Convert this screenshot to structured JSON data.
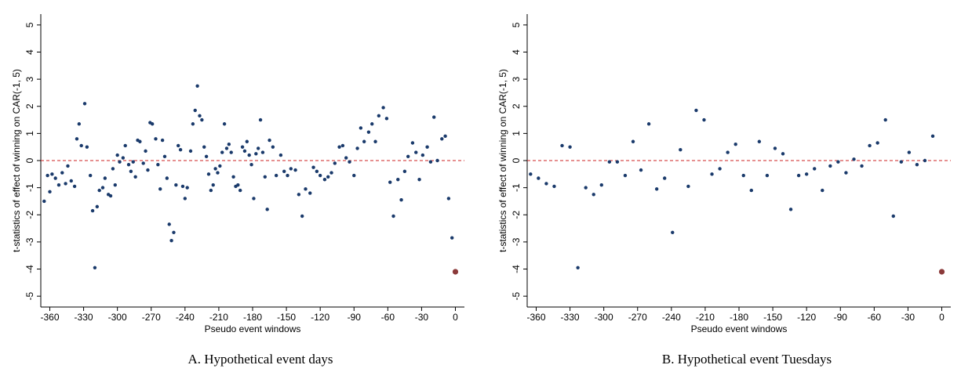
{
  "chart_data": [
    {
      "type": "scatter",
      "caption": "A. Hypothetical event days",
      "xlabel": "Pseudo event windows",
      "ylabel": "t-statistics of effect of winning on CAR(-1, 5)",
      "xlim": [
        -368,
        8
      ],
      "ylim": [
        -5.4,
        5.4
      ],
      "xticks": [
        -360,
        -330,
        -300,
        -270,
        -240,
        -210,
        -180,
        -150,
        -120,
        -90,
        -60,
        -30,
        0
      ],
      "yticks": [
        -5,
        -4,
        -3,
        -2,
        -1,
        0,
        1,
        2,
        3,
        4,
        5
      ],
      "reference_line": {
        "value": 0,
        "color": "#cc2222"
      },
      "series": [
        {
          "color": "#1a3a6b",
          "x": [
            -365,
            -362,
            -360,
            -358,
            -355,
            -352,
            -349,
            -346,
            -344,
            -341,
            -338,
            -336,
            -334,
            -332,
            -329,
            -327,
            -324,
            -322,
            -320,
            -318,
            -316,
            -313,
            -311,
            -308,
            -306,
            -304,
            -302,
            -300,
            -298,
            -295,
            -293,
            -290,
            -288,
            -286,
            -284,
            -282,
            -280,
            -277,
            -275,
            -273,
            -271,
            -269,
            -266,
            -264,
            -262,
            -260,
            -258,
            -256,
            -254,
            -252,
            -250,
            -248,
            -246,
            -244,
            -242,
            -240,
            -238,
            -235,
            -233,
            -231,
            -229,
            -227,
            -225,
            -223,
            -221,
            -219,
            -217,
            -215,
            -213,
            -211,
            -209,
            -207,
            -205,
            -203,
            -201,
            -199,
            -197,
            -195,
            -193,
            -191,
            -189,
            -187,
            -185,
            -183,
            -181,
            -179,
            -177,
            -175,
            -173,
            -171,
            -169,
            -167,
            -165,
            -162,
            -159,
            -155,
            -152,
            -149,
            -146,
            -142,
            -139,
            -136,
            -133,
            -129,
            -126,
            -123,
            -120,
            -116,
            -113,
            -110,
            -107,
            -103,
            -100,
            -97,
            -94,
            -90,
            -87,
            -84,
            -81,
            -77,
            -74,
            -71,
            -68,
            -64,
            -61,
            -58,
            -55,
            -51,
            -48,
            -45,
            -42,
            -38,
            -35,
            -32,
            -29,
            -25,
            -22,
            -19,
            -16,
            -12,
            -9,
            -6,
            -3
          ],
          "values": [
            -1.5,
            -0.55,
            -1.15,
            -0.5,
            -0.65,
            -0.9,
            -0.45,
            -0.85,
            -0.2,
            -0.75,
            -0.95,
            0.8,
            1.35,
            0.55,
            2.1,
            0.5,
            -0.55,
            -1.85,
            -3.95,
            -1.7,
            -1.1,
            -1.0,
            -0.65,
            -1.25,
            -1.3,
            -0.3,
            -0.9,
            0.2,
            -0.05,
            0.1,
            0.55,
            -0.15,
            -0.4,
            -0.05,
            -0.6,
            0.75,
            0.7,
            -0.1,
            0.35,
            -0.35,
            1.4,
            1.35,
            0.8,
            -0.15,
            -1.05,
            0.75,
            0.15,
            -0.65,
            -2.35,
            -2.95,
            -2.65,
            -0.9,
            0.55,
            0.4,
            -0.95,
            -1.4,
            -1.0,
            0.35,
            1.35,
            1.85,
            2.75,
            1.65,
            1.5,
            0.5,
            0.15,
            -0.5,
            -1.1,
            -0.9,
            -0.3,
            -0.45,
            -0.2,
            0.3,
            1.35,
            0.45,
            0.6,
            0.3,
            -0.6,
            -0.95,
            -0.9,
            -1.1,
            0.5,
            0.35,
            0.7,
            0.2,
            -0.15,
            -1.4,
            0.25,
            0.45,
            1.5,
            0.3,
            -0.6,
            -1.8,
            0.75,
            0.5,
            -0.55,
            0.2,
            -0.4,
            -0.55,
            -0.3,
            -0.35,
            -1.25,
            -2.05,
            -1.05,
            -1.2,
            -0.25,
            -0.4,
            -0.55,
            -0.7,
            -0.6,
            -0.45,
            -0.1,
            0.5,
            0.55,
            0.1,
            -0.05,
            -0.55,
            0.45,
            1.2,
            0.7,
            1.05,
            1.35,
            0.7,
            1.65,
            1.95,
            1.55,
            -0.8,
            -2.05,
            -0.7,
            -1.45,
            -0.4,
            0.15,
            0.65,
            0.3,
            -0.7,
            0.2,
            0.5,
            -0.05,
            1.6,
            0.0,
            0.8,
            0.9,
            -1.4,
            -2.85
          ]
        },
        {
          "color": "#8b3a3a",
          "x": [
            0
          ],
          "values": [
            -4.1
          ]
        }
      ]
    },
    {
      "type": "scatter",
      "caption": "B. Hypothetical event Tuesdays",
      "xlabel": "Pseudo event windows",
      "ylabel": "t-statistics of effect of winning on CAR(-1, 5)",
      "xlim": [
        -368,
        8
      ],
      "ylim": [
        -5.4,
        5.4
      ],
      "xticks": [
        -360,
        -330,
        -300,
        -270,
        -240,
        -210,
        -180,
        -150,
        -120,
        -90,
        -60,
        -30,
        0
      ],
      "yticks": [
        -5,
        -4,
        -3,
        -2,
        -1,
        0,
        1,
        2,
        3,
        4,
        5
      ],
      "reference_line": {
        "value": 0,
        "color": "#cc2222"
      },
      "series": [
        {
          "color": "#1a3a6b",
          "x": [
            -365,
            -358,
            -351,
            -344,
            -337,
            -330,
            -323,
            -316,
            -309,
            -302,
            -295,
            -288,
            -281,
            -274,
            -267,
            -260,
            -253,
            -246,
            -239,
            -232,
            -225,
            -218,
            -211,
            -204,
            -197,
            -190,
            -183,
            -176,
            -169,
            -162,
            -155,
            -148,
            -141,
            -134,
            -127,
            -120,
            -113,
            -106,
            -99,
            -92,
            -85,
            -78,
            -71,
            -64,
            -57,
            -50,
            -43,
            -36,
            -29,
            -22,
            -15,
            -8
          ],
          "values": [
            -0.5,
            -0.65,
            -0.85,
            -0.95,
            0.55,
            0.5,
            -3.95,
            -1.0,
            -1.25,
            -0.9,
            -0.05,
            -0.05,
            -0.55,
            0.7,
            -0.35,
            1.35,
            -1.05,
            -0.65,
            -2.65,
            0.4,
            -0.95,
            1.85,
            1.5,
            -0.5,
            -0.3,
            0.3,
            0.6,
            -0.55,
            -1.1,
            0.7,
            -0.55,
            0.45,
            0.25,
            -1.8,
            -0.55,
            -0.5,
            -0.3,
            -1.1,
            -0.2,
            -0.05,
            -0.45,
            0.05,
            -0.2,
            0.55,
            0.65,
            1.5,
            -2.05,
            -0.05,
            0.3,
            -0.15,
            0.0,
            0.9
          ]
        },
        {
          "color": "#8b3a3a",
          "x": [
            0
          ],
          "values": [
            -4.1
          ]
        }
      ]
    }
  ]
}
